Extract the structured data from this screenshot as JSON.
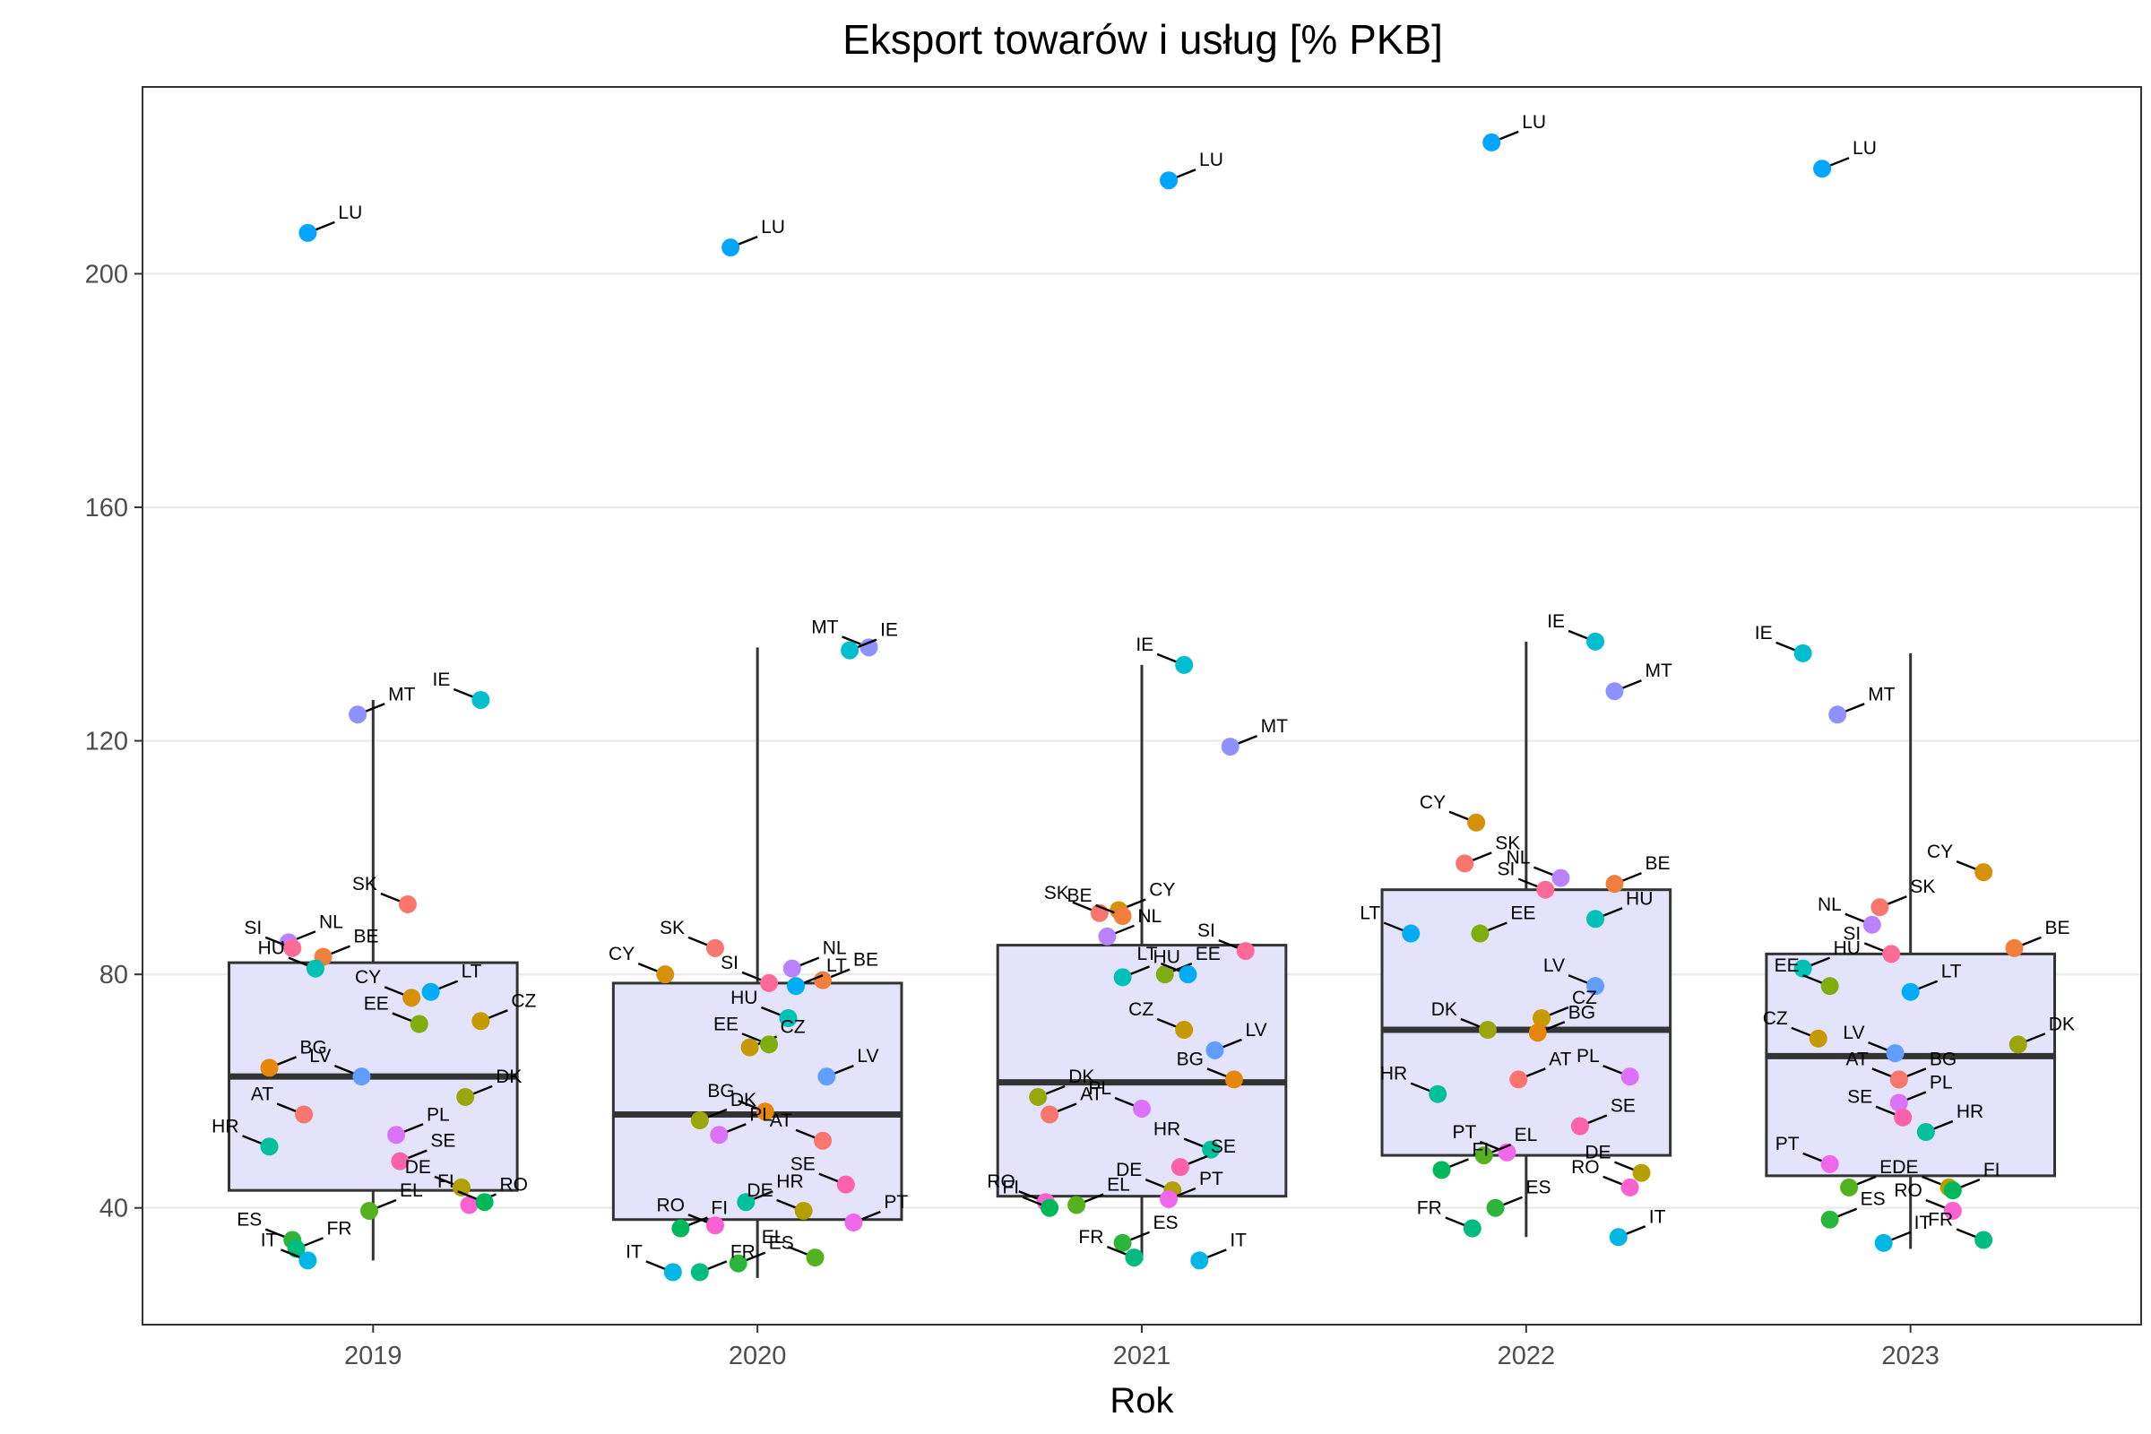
{
  "chart_data": {
    "type": "box",
    "title": "Eksport towarów i usług [% PKB]",
    "xlabel": "Rok",
    "ylabel": "",
    "categories": [
      "2019",
      "2020",
      "2021",
      "2022",
      "2023"
    ],
    "ylim": [
      20,
      232
    ],
    "y_ticks": [
      40,
      80,
      120,
      160,
      200
    ],
    "grid": true,
    "colors": {
      "box_fill": "#e3e3fb",
      "box_stroke": "#333333",
      "grid": "#ebebeb",
      "AT": "#f8766d",
      "BE": "#f07e3c",
      "BG": "#e5870a",
      "CY": "#d6900a",
      "CZ": "#c59900",
      "DE": "#b3a000",
      "DK": "#9aa70c",
      "EE": "#7fad0f",
      "EL": "#55b21f",
      "ES": "#2bb63b",
      "FI": "#00b85c",
      "FR": "#00bc7e",
      "HR": "#00bf9d",
      "HU": "#00c0b8",
      "IE": "#00bdd0",
      "IT": "#00b6e4",
      "LT": "#00adf4",
      "LU": "#00a5ff",
      "LV": "#619cff",
      "MT": "#8f91ff",
      "NL": "#b983ff",
      "PL": "#dc71fa",
      "PT": "#ef67eb",
      "RO": "#fd61d1",
      "SE": "#fb61ad",
      "SI": "#ff6a98",
      "SK": "#f8766d"
    },
    "boxes": [
      {
        "year": "2019",
        "min": 31,
        "q1": 43,
        "median": 62.5,
        "q3": 82,
        "max": 127
      },
      {
        "year": "2020",
        "min": 28,
        "q1": 38,
        "median": 56,
        "q3": 78.5,
        "max": 136
      },
      {
        "year": "2021",
        "min": 31,
        "q1": 42,
        "median": 61.5,
        "q3": 85,
        "max": 133
      },
      {
        "year": "2022",
        "min": 35,
        "q1": 49,
        "median": 70.5,
        "q3": 94.5,
        "max": 137
      },
      {
        "year": "2023",
        "min": 33,
        "q1": 45.5,
        "median": 66,
        "q3": 83.5,
        "max": 135
      }
    ],
    "series": [
      {
        "year": "2019",
        "points": [
          {
            "country": "LU",
            "value": 207,
            "jitter": -0.17
          },
          {
            "country": "IE",
            "value": 127,
            "jitter": 0.28
          },
          {
            "country": "MT",
            "value": 124.5,
            "jitter": -0.04
          },
          {
            "country": "SK",
            "value": 92,
            "jitter": 0.09
          },
          {
            "country": "NL",
            "value": 85.5,
            "jitter": -0.22
          },
          {
            "country": "SI",
            "value": 84.5,
            "jitter": -0.21
          },
          {
            "country": "BE",
            "value": 83,
            "jitter": -0.13
          },
          {
            "country": "HU",
            "value": 81,
            "jitter": -0.15
          },
          {
            "country": "LT",
            "value": 77,
            "jitter": 0.15
          },
          {
            "country": "CY",
            "value": 76,
            "jitter": 0.1
          },
          {
            "country": "CZ",
            "value": 72,
            "jitter": 0.28
          },
          {
            "country": "EE",
            "value": 71.5,
            "jitter": 0.12
          },
          {
            "country": "BG",
            "value": 64,
            "jitter": -0.27
          },
          {
            "country": "LV",
            "value": 62.5,
            "jitter": -0.03
          },
          {
            "country": "DK",
            "value": 59,
            "jitter": 0.24
          },
          {
            "country": "AT",
            "value": 56,
            "jitter": -0.18
          },
          {
            "country": "PL",
            "value": 52.5,
            "jitter": 0.06
          },
          {
            "country": "HR",
            "value": 50.5,
            "jitter": -0.27
          },
          {
            "country": "SE",
            "value": 48,
            "jitter": 0.07
          },
          {
            "country": "DE",
            "value": 43.5,
            "jitter": 0.23
          },
          {
            "country": "RO",
            "value": 40.5,
            "jitter": 0.25
          },
          {
            "country": "FI",
            "value": 41,
            "jitter": 0.29
          },
          {
            "country": "EL",
            "value": 39.5,
            "jitter": -0.01
          },
          {
            "country": "ES",
            "value": 34.5,
            "jitter": -0.21
          },
          {
            "country": "FR",
            "value": 33,
            "jitter": -0.2
          },
          {
            "country": "IT",
            "value": 31,
            "jitter": -0.17
          }
        ]
      },
      {
        "year": "2020",
        "points": [
          {
            "country": "LU",
            "value": 204.5,
            "jitter": -0.07
          },
          {
            "country": "MT",
            "value": 136,
            "jitter": 0.29
          },
          {
            "country": "IE",
            "value": 135.5,
            "jitter": 0.24
          },
          {
            "country": "SK",
            "value": 84.5,
            "jitter": -0.11
          },
          {
            "country": "NL",
            "value": 81,
            "jitter": 0.09
          },
          {
            "country": "CY",
            "value": 80,
            "jitter": -0.24
          },
          {
            "country": "BE",
            "value": 79,
            "jitter": 0.17
          },
          {
            "country": "SI",
            "value": 78.5,
            "jitter": 0.03
          },
          {
            "country": "LT",
            "value": 78,
            "jitter": 0.1
          },
          {
            "country": "HU",
            "value": 72.5,
            "jitter": 0.08
          },
          {
            "country": "CZ",
            "value": 67.5,
            "jitter": -0.02
          },
          {
            "country": "EE",
            "value": 68,
            "jitter": 0.03
          },
          {
            "country": "LV",
            "value": 62.5,
            "jitter": 0.18
          },
          {
            "country": "BG",
            "value": 56.5,
            "jitter": 0.02
          },
          {
            "country": "DK",
            "value": 55,
            "jitter": -0.15
          },
          {
            "country": "AT",
            "value": 51.5,
            "jitter": 0.17
          },
          {
            "country": "PL",
            "value": 52.5,
            "jitter": -0.1
          },
          {
            "country": "SE",
            "value": 44,
            "jitter": 0.23
          },
          {
            "country": "HR",
            "value": 41,
            "jitter": -0.03
          },
          {
            "country": "DE",
            "value": 39.5,
            "jitter": 0.12
          },
          {
            "country": "PT",
            "value": 37.5,
            "jitter": 0.25
          },
          {
            "country": "RO",
            "value": 37,
            "jitter": -0.11
          },
          {
            "country": "FI",
            "value": 36.5,
            "jitter": -0.2
          },
          {
            "country": "EL",
            "value": 31.5,
            "jitter": 0.15
          },
          {
            "country": "ES",
            "value": 30.5,
            "jitter": -0.05
          },
          {
            "country": "IT",
            "value": 29,
            "jitter": -0.22
          },
          {
            "country": "FR",
            "value": 29,
            "jitter": -0.15
          }
        ]
      },
      {
        "year": "2021",
        "points": [
          {
            "country": "LU",
            "value": 216,
            "jitter": 0.07
          },
          {
            "country": "IE",
            "value": 133,
            "jitter": 0.11
          },
          {
            "country": "MT",
            "value": 119,
            "jitter": 0.23
          },
          {
            "country": "SK",
            "value": 90.5,
            "jitter": -0.11
          },
          {
            "country": "CY",
            "value": 91,
            "jitter": -0.06
          },
          {
            "country": "BE",
            "value": 90,
            "jitter": -0.05
          },
          {
            "country": "NL",
            "value": 86.5,
            "jitter": -0.09
          },
          {
            "country": "SI",
            "value": 84,
            "jitter": 0.27
          },
          {
            "country": "EE",
            "value": 80,
            "jitter": 0.06
          },
          {
            "country": "LT",
            "value": 80,
            "jitter": 0.12
          },
          {
            "country": "HU",
            "value": 79.5,
            "jitter": -0.05
          },
          {
            "country": "CZ",
            "value": 70.5,
            "jitter": 0.11
          },
          {
            "country": "LV",
            "value": 67,
            "jitter": 0.19
          },
          {
            "country": "BG",
            "value": 62,
            "jitter": 0.24
          },
          {
            "country": "DK",
            "value": 59,
            "jitter": -0.27
          },
          {
            "country": "PL",
            "value": 57,
            "jitter": 0.0
          },
          {
            "country": "AT",
            "value": 56,
            "jitter": -0.24
          },
          {
            "country": "HR",
            "value": 50,
            "jitter": 0.18
          },
          {
            "country": "SE",
            "value": 47,
            "jitter": 0.1
          },
          {
            "country": "DE",
            "value": 43,
            "jitter": 0.08
          },
          {
            "country": "PT",
            "value": 41.5,
            "jitter": 0.07
          },
          {
            "country": "RO",
            "value": 41,
            "jitter": -0.25
          },
          {
            "country": "EL",
            "value": 40.5,
            "jitter": -0.17
          },
          {
            "country": "FI",
            "value": 40,
            "jitter": -0.24
          },
          {
            "country": "ES",
            "value": 34,
            "jitter": -0.05
          },
          {
            "country": "FR",
            "value": 31.5,
            "jitter": -0.02
          },
          {
            "country": "IT",
            "value": 31,
            "jitter": 0.15
          }
        ]
      },
      {
        "year": "2022",
        "points": [
          {
            "country": "LU",
            "value": 222.5,
            "jitter": -0.09
          },
          {
            "country": "IE",
            "value": 137,
            "jitter": 0.18
          },
          {
            "country": "MT",
            "value": 128.5,
            "jitter": 0.23
          },
          {
            "country": "CY",
            "value": 106,
            "jitter": -0.13
          },
          {
            "country": "SK",
            "value": 99,
            "jitter": -0.16
          },
          {
            "country": "NL",
            "value": 96.5,
            "jitter": 0.09
          },
          {
            "country": "BE",
            "value": 95.5,
            "jitter": 0.23
          },
          {
            "country": "SI",
            "value": 94.5,
            "jitter": 0.05
          },
          {
            "country": "HU",
            "value": 89.5,
            "jitter": 0.18
          },
          {
            "country": "LT",
            "value": 87,
            "jitter": -0.3
          },
          {
            "country": "EE",
            "value": 87,
            "jitter": -0.12
          },
          {
            "country": "LV",
            "value": 78,
            "jitter": 0.18
          },
          {
            "country": "CZ",
            "value": 72.5,
            "jitter": 0.04
          },
          {
            "country": "DK",
            "value": 70.5,
            "jitter": -0.1
          },
          {
            "country": "BG",
            "value": 70,
            "jitter": 0.03
          },
          {
            "country": "PL",
            "value": 62.5,
            "jitter": 0.27
          },
          {
            "country": "AT",
            "value": 62,
            "jitter": -0.02
          },
          {
            "country": "HR",
            "value": 59.5,
            "jitter": -0.23
          },
          {
            "country": "SE",
            "value": 54,
            "jitter": 0.14
          },
          {
            "country": "PT",
            "value": 49.5,
            "jitter": -0.05
          },
          {
            "country": "EL",
            "value": 49,
            "jitter": -0.11
          },
          {
            "country": "DE",
            "value": 46,
            "jitter": 0.3
          },
          {
            "country": "FI",
            "value": 46.5,
            "jitter": -0.22
          },
          {
            "country": "RO",
            "value": 43.5,
            "jitter": 0.27
          },
          {
            "country": "ES",
            "value": 40,
            "jitter": -0.08
          },
          {
            "country": "FR",
            "value": 36.5,
            "jitter": -0.14
          },
          {
            "country": "IT",
            "value": 35,
            "jitter": 0.24
          }
        ]
      },
      {
        "year": "2023",
        "points": [
          {
            "country": "LU",
            "value": 218,
            "jitter": -0.23
          },
          {
            "country": "IE",
            "value": 135,
            "jitter": -0.28
          },
          {
            "country": "MT",
            "value": 124.5,
            "jitter": -0.19
          },
          {
            "country": "CY",
            "value": 97.5,
            "jitter": 0.19
          },
          {
            "country": "SK",
            "value": 91.5,
            "jitter": -0.08
          },
          {
            "country": "NL",
            "value": 88.5,
            "jitter": -0.1
          },
          {
            "country": "BE",
            "value": 84.5,
            "jitter": 0.27
          },
          {
            "country": "SI",
            "value": 83.5,
            "jitter": -0.05
          },
          {
            "country": "HU",
            "value": 81,
            "jitter": -0.28
          },
          {
            "country": "EE",
            "value": 78,
            "jitter": -0.21
          },
          {
            "country": "LT",
            "value": 77,
            "jitter": 0.0
          },
          {
            "country": "CZ",
            "value": 69,
            "jitter": -0.24
          },
          {
            "country": "DK",
            "value": 68,
            "jitter": 0.28
          },
          {
            "country": "LV",
            "value": 66.5,
            "jitter": -0.04
          },
          {
            "country": "BG",
            "value": 62,
            "jitter": -0.03
          },
          {
            "country": "AT",
            "value": 62,
            "jitter": -0.03
          },
          {
            "country": "PL",
            "value": 58,
            "jitter": -0.03
          },
          {
            "country": "SE",
            "value": 55.5,
            "jitter": -0.02
          },
          {
            "country": "HR",
            "value": 53,
            "jitter": 0.04
          },
          {
            "country": "PT",
            "value": 47.5,
            "jitter": -0.21
          },
          {
            "country": "EL",
            "value": 43.5,
            "jitter": -0.16
          },
          {
            "country": "DE",
            "value": 43.5,
            "jitter": 0.1
          },
          {
            "country": "FI",
            "value": 43,
            "jitter": 0.11
          },
          {
            "country": "RO",
            "value": 39.5,
            "jitter": 0.11
          },
          {
            "country": "ES",
            "value": 38,
            "jitter": -0.21
          },
          {
            "country": "FR",
            "value": 34.5,
            "jitter": 0.19
          },
          {
            "country": "IT",
            "value": 34,
            "jitter": -0.07
          }
        ]
      }
    ]
  }
}
